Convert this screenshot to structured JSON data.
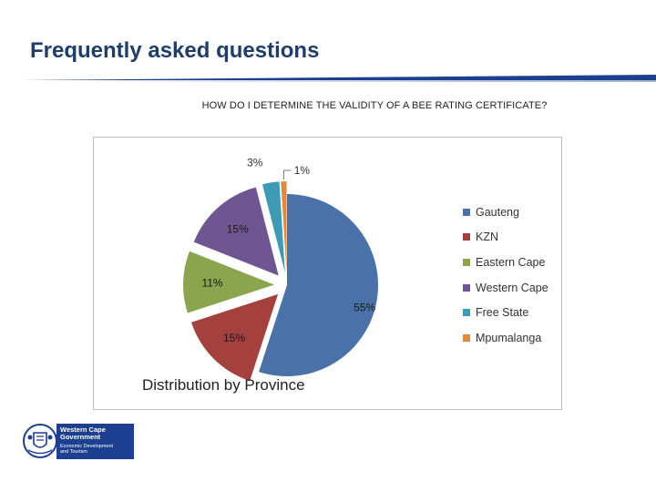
{
  "header": {
    "title": "Frequently asked questions",
    "question": "HOW DO I DETERMINE THE VALIDITY OF A BEE RATING CERTIFICATE?"
  },
  "chart_data": {
    "type": "pie",
    "title": "Distribution by Province",
    "legend_position": "right",
    "exploded": true,
    "slices": [
      {
        "label": "Gauteng",
        "value": 55,
        "display": "55%",
        "color": "#4a72a8"
      },
      {
        "label": "KZN",
        "value": 15,
        "display": "15%",
        "color": "#a4413f"
      },
      {
        "label": "Eastern Cape",
        "value": 11,
        "display": "11%",
        "color": "#8aa54d"
      },
      {
        "label": "Western Cape",
        "value": 15,
        "display": "15%",
        "color": "#6f5693"
      },
      {
        "label": "Free State",
        "value": 3,
        "display": "3%",
        "color": "#3f9bb4"
      },
      {
        "label": "Mpumalanga",
        "value": 1,
        "display": "1%",
        "color": "#df8a3c"
      }
    ]
  },
  "logo": {
    "line1": "Western Cape",
    "line2": "Government",
    "line3": "Economic Development",
    "line4": "and Tourism",
    "color": "#1c3f8f"
  }
}
